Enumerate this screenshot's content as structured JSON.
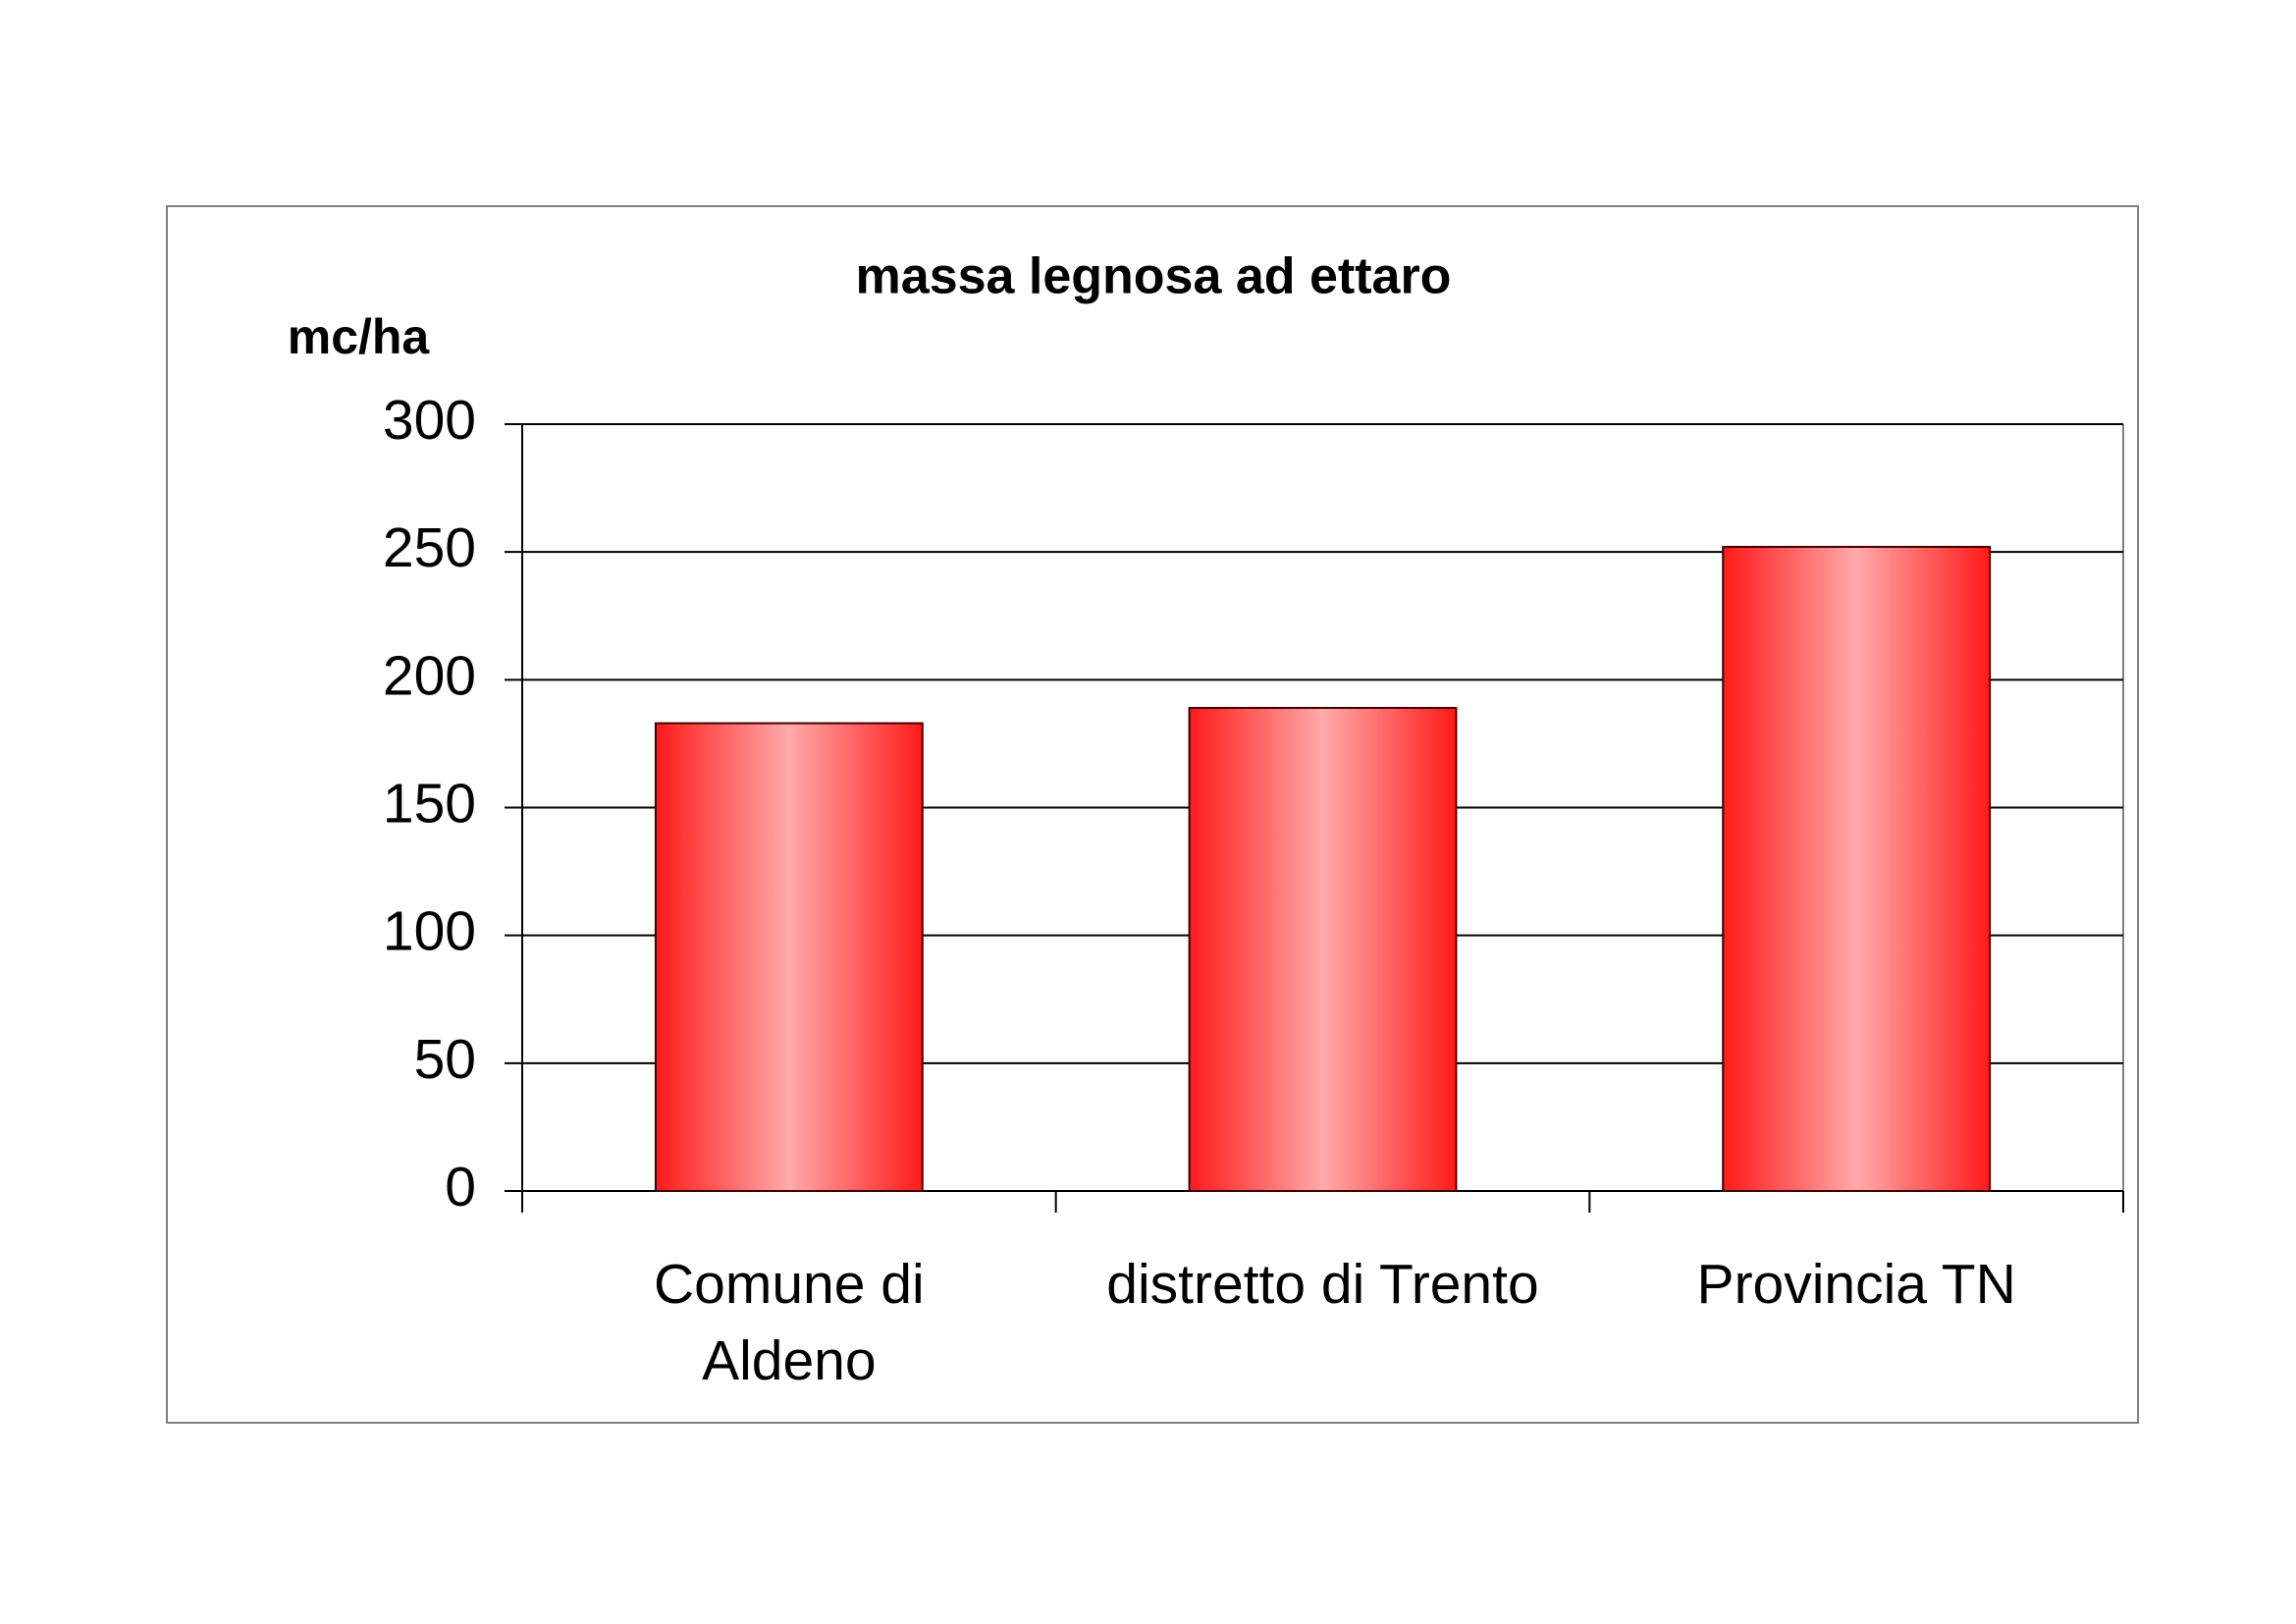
{
  "chart_data": {
    "type": "bar",
    "title": "massa legnosa ad ettaro",
    "y_label": "mc/ha",
    "categories": [
      "Comune di\nAldeno",
      "distretto di Trento",
      "Provincia TN"
    ],
    "values": [
      183,
      189,
      252
    ],
    "color": "#ff1a1a",
    "ylim": [
      0,
      300
    ],
    "yticks": [
      0,
      50,
      100,
      150,
      200,
      250,
      300
    ],
    "grid": true
  }
}
